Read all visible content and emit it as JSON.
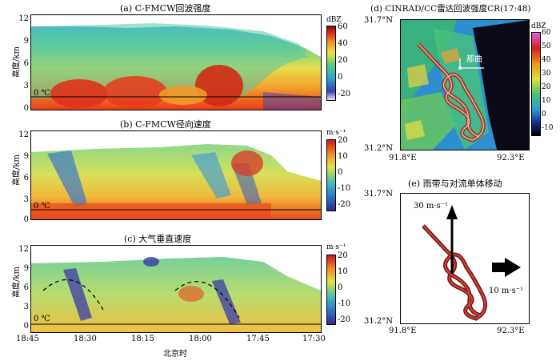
{
  "panel_a": {
    "title": "(a) C-FMCW回波强度",
    "unit": "dBZ",
    "cbar_ticks": [
      "60",
      "40",
      "20",
      "0",
      "-20"
    ]
  },
  "panel_b": {
    "title": "(b) C-FMCW径向速度",
    "unit": "m·s⁻¹",
    "cbar_ticks": [
      "20",
      "10",
      "0",
      "-10",
      "-20"
    ]
  },
  "panel_c": {
    "title": "(c) 大气垂直速度",
    "unit": "m·s⁻¹",
    "cbar_ticks": [
      "20",
      "10",
      "0",
      "-10",
      "-20"
    ]
  },
  "panel_d": {
    "title": "(d) CINRAD/CC雷达回波强度CR(17:48)",
    "unit": "dBZ",
    "cbar_ticks": [
      "60",
      "50",
      "40",
      "30",
      "20",
      "10",
      "0",
      "-10"
    ],
    "lat_top": "31.7°N",
    "lat_bot": "31.2°N",
    "lon_left": "91.8°E",
    "lon_right": "92.3°E",
    "place": "那曲"
  },
  "panel_e": {
    "title": "(e) 雨带与对流单体移动",
    "speed_vertical": "30 m·s⁻¹",
    "speed_horizontal": "10 m·s⁻¹",
    "lat_top": "31.7°N",
    "lat_bot": "31.2°N",
    "lon_left": "91.8°E",
    "lon_right": "92.3°E"
  },
  "height_axis": {
    "label": "高度/km",
    "ticks": [
      "12",
      "9",
      "6",
      "3",
      "0"
    ]
  },
  "time_axis": {
    "label": "北京时",
    "ticks": [
      "18:45",
      "18:30",
      "18:15",
      "18:00",
      "17:45",
      "17:30"
    ]
  },
  "zero_c_label": "0 ℃"
}
